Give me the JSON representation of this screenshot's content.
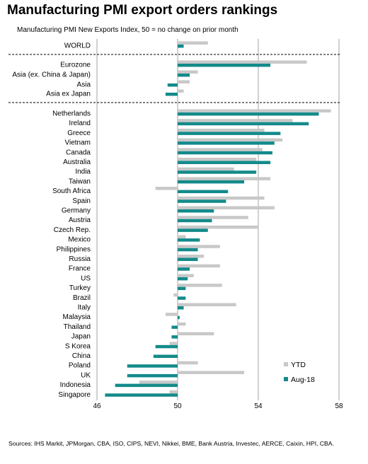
{
  "title": "Manufacturing PMI export orders rankings",
  "subtitle": "Manufacturing PMI New Exports Index, 50 = no change on prior month",
  "source": "Sources: IHS Markit, JPMorgan, CBA, ISO, CIPS, NEVI, Nikkei, BME, Bank Austria, Investec, AERCE, Caixin, HPI, CBA.",
  "colors": {
    "ytd": "#c8c8c8",
    "aug": "#138a8a",
    "grid": "#8c8c8c",
    "divider": "#000000"
  },
  "chart_data": {
    "type": "bar",
    "orientation": "horizontal",
    "xlim": [
      46,
      58
    ],
    "xticks": [
      46,
      50,
      54,
      58
    ],
    "baseline": 50,
    "legend_position": "bottom-right",
    "groups": [
      {
        "categories": [
          "WORLD"
        ]
      },
      {
        "categories": [
          "Eurozone",
          "Asia (ex. China & Japan)",
          "Asia",
          "Asia ex Japan"
        ]
      },
      {
        "categories": [
          "Netherlands",
          "Ireland",
          "Greece",
          "Vietnam",
          "Canada",
          "Australia",
          "India",
          "Taiwan",
          "South Africa",
          "Spain",
          "Germany",
          "Austria",
          "Czech Rep.",
          "Mexico",
          "Philippines",
          "Russia",
          "France",
          "US",
          "Turkey",
          "Brazil",
          "Italy",
          "Malaysia",
          "Thailand",
          "Japan",
          "S Korea",
          "China",
          "Poland",
          "UK",
          "Indonesia",
          "Singapore"
        ]
      }
    ],
    "categories": [
      "WORLD",
      "Eurozone",
      "Asia (ex. China & Japan)",
      "Asia",
      "Asia ex Japan",
      "Netherlands",
      "Ireland",
      "Greece",
      "Vietnam",
      "Canada",
      "Australia",
      "India",
      "Taiwan",
      "South Africa",
      "Spain",
      "Germany",
      "Austria",
      "Czech Rep.",
      "Mexico",
      "Philippines",
      "Russia",
      "France",
      "US",
      "Turkey",
      "Brazil",
      "Italy",
      "Malaysia",
      "Thailand",
      "Japan",
      "S Korea",
      "China",
      "Poland",
      "UK",
      "Indonesia",
      "Singapore"
    ],
    "series": [
      {
        "name": "YTD",
        "values": [
          51.5,
          56.4,
          51.0,
          50.6,
          50.3,
          57.6,
          55.7,
          54.3,
          55.2,
          54.2,
          53.9,
          52.8,
          54.6,
          48.9,
          54.3,
          54.8,
          53.5,
          54.0,
          50.4,
          52.1,
          51.3,
          52.1,
          50.8,
          52.2,
          49.8,
          52.9,
          49.4,
          50.4,
          51.8,
          49.6,
          50.0,
          51.0,
          53.3,
          48.1,
          49.6
        ]
      },
      {
        "name": "Aug-18",
        "values": [
          50.3,
          54.6,
          50.6,
          49.5,
          49.4,
          57.0,
          56.5,
          55.1,
          54.8,
          54.7,
          54.6,
          53.9,
          53.3,
          52.5,
          52.4,
          51.8,
          51.7,
          51.5,
          51.1,
          51.0,
          51.0,
          50.6,
          50.5,
          50.4,
          50.4,
          50.3,
          50.1,
          49.7,
          49.7,
          48.9,
          48.8,
          47.5,
          47.5,
          46.9,
          46.4
        ]
      }
    ]
  }
}
